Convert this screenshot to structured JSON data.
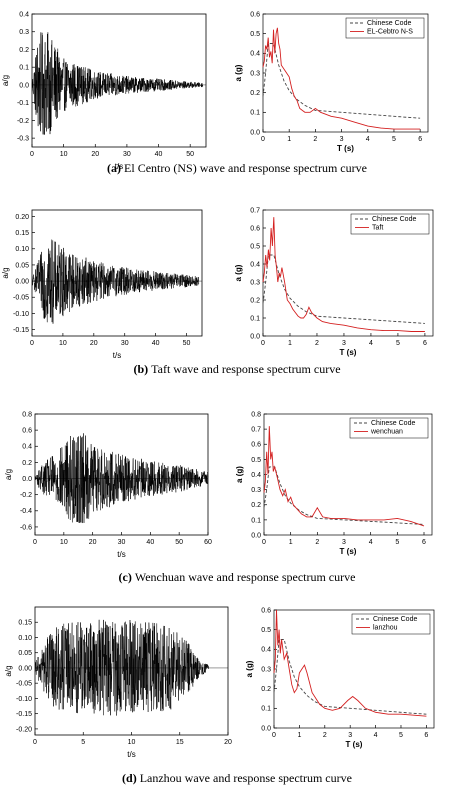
{
  "chart_data": [
    {
      "type": "line",
      "panel": "a-wave",
      "title": "",
      "xlabel": "t/s",
      "ylabel": "a/g",
      "xlim": [
        0,
        55
      ],
      "ylim": [
        -0.35,
        0.4
      ],
      "x_ticks": [
        0,
        10,
        20,
        30,
        40,
        50
      ],
      "y_ticks": [
        -0.3,
        -0.2,
        -0.1,
        0.0,
        0.1,
        0.2,
        0.3,
        0.4
      ],
      "y_tick_labels": [
        "-0.3",
        "-0.2",
        "-0.1",
        "0.0",
        "0.1",
        "0.2",
        "0.3",
        "0.4"
      ],
      "series": [
        {
          "name": "",
          "color": "#000000",
          "duration": 54,
          "peak": 0.33,
          "peak_neg": -0.28,
          "envelope": [
            [
              0,
              0.02
            ],
            [
              2,
              0.3
            ],
            [
              5,
              0.3
            ],
            [
              10,
              0.15
            ],
            [
              20,
              0.08
            ],
            [
              30,
              0.05
            ],
            [
              54,
              0.012
            ]
          ]
        }
      ],
      "grid": false
    },
    {
      "type": "line",
      "panel": "a-spectrum",
      "title": "",
      "xlabel": "T (s)",
      "ylabel": "a (g)",
      "xlim": [
        0,
        6.3
      ],
      "ylim": [
        0,
        0.6
      ],
      "x_ticks": [
        0,
        1,
        2,
        3,
        4,
        5,
        6
      ],
      "y_ticks": [
        0.0,
        0.1,
        0.2,
        0.3,
        0.4,
        0.5,
        0.6
      ],
      "y_tick_labels": [
        "0.0",
        "0.1",
        "0.2",
        "0.3",
        "0.4",
        "0.5",
        "0.6"
      ],
      "legend": "top-right",
      "series": [
        {
          "name": "Chinese Code",
          "color": "#444444",
          "dash": true,
          "x": [
            0,
            0.1,
            0.2,
            0.3,
            0.4,
            0.6,
            0.8,
            1.0,
            1.3,
            1.6,
            2.0,
            2.5,
            3.0,
            3.5,
            4.0,
            4.5,
            5.0,
            5.5,
            6.0
          ],
          "y": [
            0.18,
            0.3,
            0.45,
            0.45,
            0.45,
            0.34,
            0.26,
            0.21,
            0.165,
            0.135,
            0.11,
            0.105,
            0.1,
            0.095,
            0.09,
            0.085,
            0.08,
            0.075,
            0.07
          ]
        },
        {
          "name": "EL-Cebtro N-S",
          "color": "#d42020",
          "dash": false,
          "x": [
            0,
            0.05,
            0.1,
            0.15,
            0.2,
            0.25,
            0.3,
            0.35,
            0.4,
            0.45,
            0.5,
            0.55,
            0.6,
            0.65,
            0.7,
            0.8,
            0.9,
            1.0,
            1.1,
            1.2,
            1.3,
            1.4,
            1.5,
            1.6,
            1.8,
            2.0,
            2.2,
            2.4,
            2.6,
            3.0,
            3.5,
            4.0,
            4.5,
            5.0,
            5.5,
            6.0
          ],
          "y": [
            0.33,
            0.36,
            0.44,
            0.42,
            0.48,
            0.38,
            0.41,
            0.35,
            0.52,
            0.4,
            0.5,
            0.53,
            0.45,
            0.42,
            0.34,
            0.32,
            0.3,
            0.28,
            0.22,
            0.18,
            0.16,
            0.12,
            0.11,
            0.1,
            0.1,
            0.12,
            0.1,
            0.09,
            0.08,
            0.07,
            0.05,
            0.03,
            0.02,
            0.015,
            0.015,
            0.015
          ]
        }
      ],
      "grid": false
    },
    {
      "type": "line",
      "panel": "b-wave",
      "title": "",
      "xlabel": "t/s",
      "ylabel": "a/g",
      "xlim": [
        0,
        55
      ],
      "ylim": [
        -0.17,
        0.22
      ],
      "x_ticks": [
        0,
        10,
        20,
        30,
        40,
        50
      ],
      "y_ticks": [
        -0.15,
        -0.1,
        -0.05,
        0.0,
        0.05,
        0.1,
        0.15,
        0.2
      ],
      "y_tick_labels": [
        "-0.15",
        "-0.10",
        "-0.05",
        "0.00",
        "0.05",
        "0.10",
        "0.15",
        "0.20"
      ],
      "series": [
        {
          "name": "",
          "color": "#000000",
          "duration": 54,
          "peak": 0.15,
          "peak_neg": -0.16,
          "envelope": [
            [
              0,
              0.01
            ],
            [
              2,
              0.06
            ],
            [
              5,
              0.15
            ],
            [
              8,
              0.12
            ],
            [
              15,
              0.08
            ],
            [
              25,
              0.05
            ],
            [
              40,
              0.03
            ],
            [
              54,
              0.015
            ]
          ]
        }
      ],
      "grid": false
    },
    {
      "type": "line",
      "panel": "b-spectrum",
      "title": "",
      "xlabel": "T (s)",
      "ylabel": "a (g)",
      "xlim": [
        0,
        6.3
      ],
      "ylim": [
        0,
        0.7
      ],
      "x_ticks": [
        0,
        1,
        2,
        3,
        4,
        5,
        6
      ],
      "y_ticks": [
        0.0,
        0.1,
        0.2,
        0.3,
        0.4,
        0.5,
        0.6,
        0.7
      ],
      "y_tick_labels": [
        "0.0",
        "0.1",
        "0.2",
        "0.3",
        "0.4",
        "0.5",
        "0.6",
        "0.7"
      ],
      "legend": "top-right",
      "series": [
        {
          "name": "Chinese Code",
          "color": "#444444",
          "dash": true,
          "x": [
            0,
            0.1,
            0.2,
            0.3,
            0.4,
            0.6,
            0.8,
            1.0,
            1.3,
            1.6,
            2.0,
            2.5,
            3.0,
            3.5,
            4.0,
            4.5,
            5.0,
            5.5,
            6.0
          ],
          "y": [
            0.18,
            0.3,
            0.45,
            0.45,
            0.45,
            0.34,
            0.26,
            0.21,
            0.165,
            0.135,
            0.11,
            0.105,
            0.1,
            0.095,
            0.09,
            0.085,
            0.08,
            0.075,
            0.07
          ]
        },
        {
          "name": "Taft",
          "color": "#d42020",
          "dash": false,
          "x": [
            0,
            0.05,
            0.1,
            0.15,
            0.2,
            0.25,
            0.3,
            0.35,
            0.4,
            0.45,
            0.5,
            0.55,
            0.6,
            0.65,
            0.7,
            0.8,
            0.9,
            1.0,
            1.1,
            1.2,
            1.3,
            1.4,
            1.5,
            1.6,
            1.7,
            1.8,
            2.0,
            2.2,
            2.5,
            3.0,
            3.5,
            4.0,
            4.5,
            5.0,
            5.5,
            6.0
          ],
          "y": [
            0.3,
            0.35,
            0.45,
            0.38,
            0.48,
            0.42,
            0.6,
            0.5,
            0.66,
            0.45,
            0.38,
            0.3,
            0.35,
            0.33,
            0.38,
            0.3,
            0.2,
            0.18,
            0.15,
            0.13,
            0.11,
            0.1,
            0.1,
            0.12,
            0.16,
            0.13,
            0.1,
            0.08,
            0.07,
            0.06,
            0.045,
            0.035,
            0.03,
            0.03,
            0.025,
            0.025
          ]
        }
      ],
      "grid": false
    },
    {
      "type": "line",
      "panel": "c-wave",
      "title": "",
      "xlabel": "t/s",
      "ylabel": "a/g",
      "xlim": [
        0,
        60
      ],
      "ylim": [
        -0.7,
        0.8
      ],
      "x_ticks": [
        0,
        10,
        20,
        30,
        40,
        50,
        60
      ],
      "y_ticks": [
        -0.6,
        -0.4,
        -0.2,
        0.0,
        0.2,
        0.4,
        0.6,
        0.8
      ],
      "y_tick_labels": [
        "-0.6",
        "-0.4",
        "-0.2",
        "0.0",
        "0.2",
        "0.4",
        "0.6",
        "0.8"
      ],
      "series": [
        {
          "name": "",
          "color": "#000000",
          "duration": 60,
          "peak": 0.62,
          "peak_neg": -0.55,
          "envelope": [
            [
              0,
              0.05
            ],
            [
              3,
              0.2
            ],
            [
              8,
              0.35
            ],
            [
              12,
              0.55
            ],
            [
              16,
              0.6
            ],
            [
              20,
              0.45
            ],
            [
              30,
              0.3
            ],
            [
              40,
              0.22
            ],
            [
              50,
              0.17
            ],
            [
              60,
              0.08
            ]
          ]
        }
      ],
      "grid": false
    },
    {
      "type": "line",
      "panel": "c-spectrum",
      "title": "",
      "xlabel": "T (s)",
      "ylabel": "a (g)",
      "xlim": [
        0,
        6.3
      ],
      "ylim": [
        0,
        0.8
      ],
      "x_ticks": [
        0,
        1,
        2,
        3,
        4,
        5,
        6
      ],
      "y_ticks": [
        0.0,
        0.1,
        0.2,
        0.3,
        0.4,
        0.5,
        0.6,
        0.7,
        0.8
      ],
      "y_tick_labels": [
        "0.0",
        "0.1",
        "0.2",
        "0.3",
        "0.4",
        "0.5",
        "0.6",
        "0.7",
        "0.8"
      ],
      "legend": "top-right",
      "series": [
        {
          "name": "Chinese Code",
          "color": "#444444",
          "dash": true,
          "x": [
            0,
            0.1,
            0.2,
            0.3,
            0.4,
            0.6,
            0.8,
            1.0,
            1.3,
            1.6,
            2.0,
            2.5,
            3.0,
            3.5,
            4.0,
            4.5,
            5.0,
            5.5,
            6.0
          ],
          "y": [
            0.18,
            0.3,
            0.45,
            0.45,
            0.45,
            0.34,
            0.26,
            0.21,
            0.165,
            0.135,
            0.11,
            0.105,
            0.1,
            0.095,
            0.09,
            0.085,
            0.08,
            0.075,
            0.07
          ]
        },
        {
          "name": "wenchuan",
          "color": "#d42020",
          "dash": false,
          "x": [
            0,
            0.05,
            0.1,
            0.15,
            0.2,
            0.25,
            0.3,
            0.35,
            0.4,
            0.5,
            0.6,
            0.7,
            0.8,
            0.9,
            1.0,
            1.1,
            1.2,
            1.4,
            1.6,
            1.8,
            2.0,
            2.2,
            2.5,
            3.0,
            3.5,
            4.0,
            4.5,
            5.0,
            5.5,
            6.0
          ],
          "y": [
            0.28,
            0.35,
            0.55,
            0.4,
            0.72,
            0.5,
            0.55,
            0.42,
            0.45,
            0.38,
            0.3,
            0.26,
            0.3,
            0.22,
            0.25,
            0.2,
            0.18,
            0.14,
            0.12,
            0.12,
            0.18,
            0.12,
            0.11,
            0.11,
            0.1,
            0.1,
            0.1,
            0.11,
            0.09,
            0.06
          ]
        }
      ],
      "grid": false
    },
    {
      "type": "line",
      "panel": "d-wave",
      "title": "",
      "xlabel": "t/s",
      "ylabel": "a/g",
      "xlim": [
        0,
        20
      ],
      "ylim": [
        -0.22,
        0.2
      ],
      "x_ticks": [
        0,
        5,
        10,
        15,
        20
      ],
      "y_ticks": [
        -0.2,
        -0.15,
        -0.1,
        -0.05,
        0.0,
        0.05,
        0.1,
        0.15
      ],
      "y_tick_labels": [
        "-0.20",
        "-0.15",
        "-0.10",
        "-0.05",
        "0.00",
        "0.05",
        "0.10",
        "0.15"
      ],
      "series": [
        {
          "name": "",
          "color": "#000000",
          "duration": 18,
          "peak": 0.17,
          "peak_neg": -0.16,
          "envelope": [
            [
              0,
              0.02
            ],
            [
              1.5,
              0.12
            ],
            [
              3,
              0.15
            ],
            [
              6,
              0.16
            ],
            [
              10,
              0.16
            ],
            [
              14,
              0.14
            ],
            [
              16,
              0.08
            ],
            [
              17,
              0.03
            ],
            [
              18,
              0.01
            ]
          ]
        }
      ],
      "grid": false
    },
    {
      "type": "line",
      "panel": "d-spectrum",
      "title": "",
      "xlabel": "T (s)",
      "ylabel": "a (g)",
      "xlim": [
        0,
        6.3
      ],
      "ylim": [
        0,
        0.6
      ],
      "x_ticks": [
        0,
        1,
        2,
        3,
        4,
        5,
        6
      ],
      "y_ticks": [
        0.0,
        0.1,
        0.2,
        0.3,
        0.4,
        0.5,
        0.6
      ],
      "y_tick_labels": [
        "0.0",
        "0.1",
        "0.2",
        "0.3",
        "0.4",
        "0.5",
        "0.6"
      ],
      "legend": "top-right",
      "series": [
        {
          "name": "Cninese Code",
          "color": "#444444",
          "dash": true,
          "x": [
            0,
            0.1,
            0.2,
            0.3,
            0.4,
            0.6,
            0.8,
            1.0,
            1.3,
            1.6,
            2.0,
            2.5,
            3.0,
            3.5,
            4.0,
            4.5,
            5.0,
            5.5,
            6.0
          ],
          "y": [
            0.18,
            0.3,
            0.45,
            0.45,
            0.45,
            0.34,
            0.26,
            0.21,
            0.165,
            0.135,
            0.11,
            0.105,
            0.1,
            0.095,
            0.09,
            0.085,
            0.08,
            0.075,
            0.07
          ]
        },
        {
          "name": "lanzhou",
          "color": "#d42020",
          "dash": false,
          "x": [
            0,
            0.05,
            0.1,
            0.15,
            0.2,
            0.25,
            0.3,
            0.4,
            0.5,
            0.6,
            0.7,
            0.8,
            0.9,
            1.0,
            1.1,
            1.2,
            1.3,
            1.5,
            1.8,
            2.0,
            2.3,
            2.6,
            2.9,
            3.1,
            3.3,
            3.6,
            4.0,
            4.5,
            5.0,
            5.5,
            6.0
          ],
          "y": [
            0.28,
            0.35,
            0.6,
            0.42,
            0.5,
            0.38,
            0.45,
            0.35,
            0.38,
            0.3,
            0.22,
            0.18,
            0.2,
            0.28,
            0.3,
            0.32,
            0.28,
            0.18,
            0.12,
            0.1,
            0.09,
            0.1,
            0.14,
            0.16,
            0.14,
            0.1,
            0.08,
            0.07,
            0.07,
            0.065,
            0.06
          ]
        }
      ],
      "grid": false
    }
  ],
  "captions": [
    {
      "label": "(a)",
      "text": "El Centro (NS) wave and response spectrum curve"
    },
    {
      "label": "(b)",
      "text": "Taft wave and response spectrum curve"
    },
    {
      "label": "(c)",
      "text": "Wenchuan wave and response spectrum curve"
    },
    {
      "label": "(d)",
      "text": "Lanzhou wave and response spectrum curve"
    }
  ]
}
